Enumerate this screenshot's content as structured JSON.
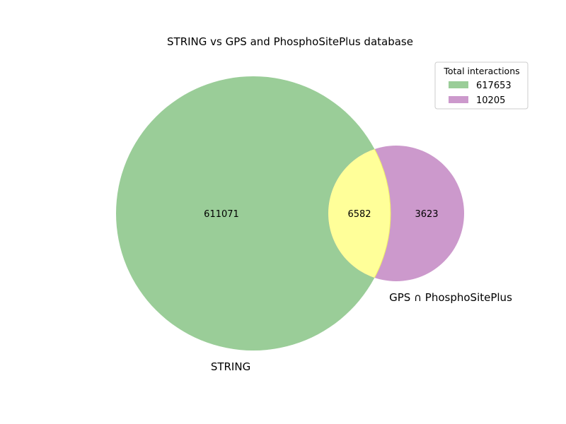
{
  "title": "STRING vs GPS and PhosphoSitePlus database",
  "sets": [
    {
      "id": "string",
      "label": "STRING",
      "color": "#9acd98"
    },
    {
      "id": "gps",
      "label": "GPS ∩ PhosphoSitePlus",
      "color": "#cc99cc"
    }
  ],
  "overlap_color": "#ffff99",
  "regions": {
    "string_only": "611071",
    "both": "6582",
    "gps_only": "3623"
  },
  "legend": {
    "title": "Total interactions",
    "entries": [
      {
        "label": "617653",
        "color": "#9acd98"
      },
      {
        "label": "10205",
        "color": "#cc99cc"
      }
    ]
  }
}
